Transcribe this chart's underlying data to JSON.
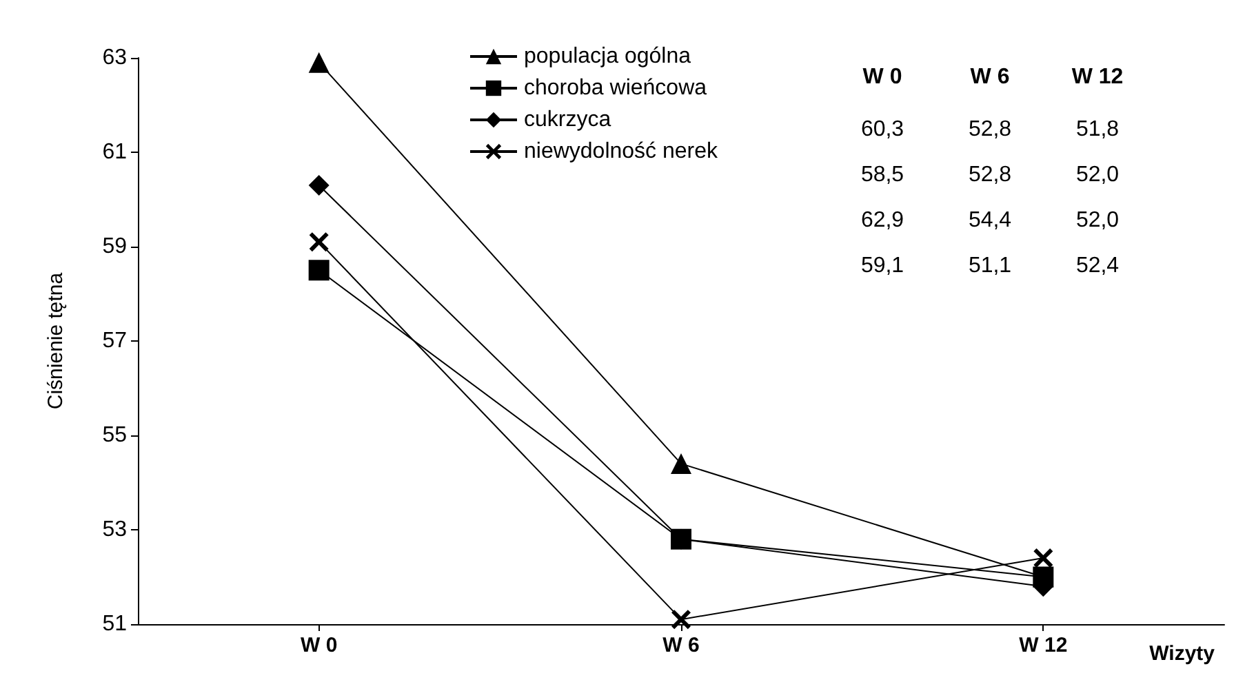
{
  "chart_data": {
    "type": "line",
    "ylabel": "Ciśnienie tętna",
    "xlabel": "Wizyty",
    "categories": [
      "W 0",
      "W 6",
      "W 12"
    ],
    "series": [
      {
        "name": "populacja ogólna",
        "color": "#000000",
        "marker": "triangle",
        "values": [
          62.9,
          54.4,
          52.0
        ]
      },
      {
        "name": "choroba wieńcowa",
        "color": "#000000",
        "marker": "square",
        "values": [
          58.5,
          52.8,
          52.0
        ]
      },
      {
        "name": "cukrzyca",
        "color": "#000000",
        "marker": "diamond",
        "values": [
          60.3,
          52.8,
          51.8
        ]
      },
      {
        "name": "niewydolność nerek",
        "color": "#000000",
        "marker": "cross",
        "values": [
          59.1,
          51.1,
          52.4
        ]
      }
    ],
    "ylim": [
      51,
      63
    ],
    "yticks": [
      51,
      53,
      55,
      57,
      59,
      61,
      63
    ],
    "grid": false,
    "legend": "top",
    "line_style": "solid",
    "annotations": [
      "W 0",
      "W 6",
      "W 12",
      "60,3",
      "52,8",
      "51,8",
      "58,5",
      "52,8",
      "52,0",
      "62,9",
      "54,4",
      "52,0",
      "59,1",
      "51,1",
      "52,4"
    ]
  }
}
